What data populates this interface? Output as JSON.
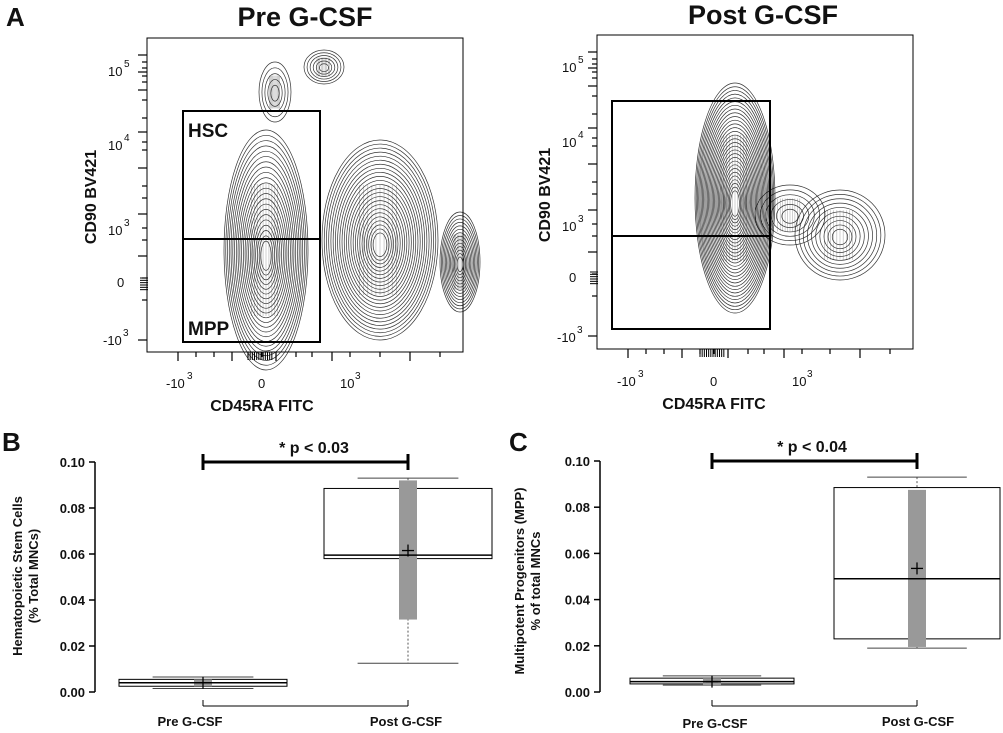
{
  "panels": {
    "a": {
      "letter": "A"
    },
    "b": {
      "letter": "B"
    },
    "c": {
      "letter": "C"
    }
  },
  "chart_data": [
    {
      "type": "flow-contour",
      "title": "Pre G-CSF",
      "xlabel": "CD45RA FITC",
      "ylabel": "CD90 BV421",
      "x_ticks": [
        "-10",
        "0",
        "10"
      ],
      "y_ticks": [
        "10",
        "10",
        "10",
        "0",
        "-10"
      ],
      "x_tick_exponents": [
        "3",
        "",
        "3"
      ],
      "y_tick_exponents": [
        "5",
        "4",
        "3",
        "",
        "3"
      ],
      "gates": [
        "HSC",
        "MPP"
      ]
    },
    {
      "type": "flow-contour",
      "title": "Post G-CSF",
      "xlabel": "CD45RA FITC",
      "ylabel": "CD90 BV421",
      "x_ticks": [
        "-10",
        "0",
        "10"
      ],
      "y_ticks": [
        "10",
        "10",
        "10",
        "0",
        "-10"
      ],
      "x_tick_exponents": [
        "3",
        "",
        "3"
      ],
      "y_tick_exponents": [
        "5",
        "4",
        "3",
        "",
        "3"
      ],
      "gates": []
    },
    {
      "type": "box",
      "categories": [
        "Pre G-CSF",
        "Post G-CSF"
      ],
      "ylabel_lines": [
        "Hematopoietic Stem Cells",
        "(% Total MNCs)"
      ],
      "ylim": [
        0,
        0.1
      ],
      "y_ticks": [
        "0.00",
        "0.02",
        "0.04",
        "0.06",
        "0.08",
        "0.10"
      ],
      "annotation": "* p < 0.03",
      "boxes": [
        {
          "category": "Pre G-CSF",
          "min": 0.0015,
          "q1": 0.0025,
          "median": 0.004,
          "q3": 0.0055,
          "max": 0.0065,
          "mean": 0.004,
          "sd_low": 0.0025,
          "sd_high": 0.0055
        },
        {
          "category": "Post G-CSF",
          "min": 0.0125,
          "q1": 0.058,
          "median": 0.0595,
          "q3": 0.0885,
          "max": 0.093,
          "mean": 0.0615,
          "sd_low": 0.0315,
          "sd_high": 0.092
        }
      ]
    },
    {
      "type": "box",
      "categories": [
        "Pre G-CSF",
        "Post G-CSF"
      ],
      "ylabel_lines": [
        "Multipotent Progenitors (MPP)",
        "% of total MNCs"
      ],
      "ylim": [
        0,
        0.1
      ],
      "y_ticks": [
        "0.00",
        "0.02",
        "0.04",
        "0.06",
        "0.08",
        "0.10"
      ],
      "annotation": "* p < 0.04",
      "boxes": [
        {
          "category": "Pre G-CSF",
          "min": 0.003,
          "q1": 0.0035,
          "median": 0.0045,
          "q3": 0.006,
          "max": 0.007,
          "mean": 0.0045,
          "sd_low": 0.003,
          "sd_high": 0.006
        },
        {
          "category": "Post G-CSF",
          "min": 0.019,
          "q1": 0.023,
          "median": 0.049,
          "q3": 0.0885,
          "max": 0.093,
          "mean": 0.0535,
          "sd_low": 0.0195,
          "sd_high": 0.0875
        }
      ]
    }
  ]
}
